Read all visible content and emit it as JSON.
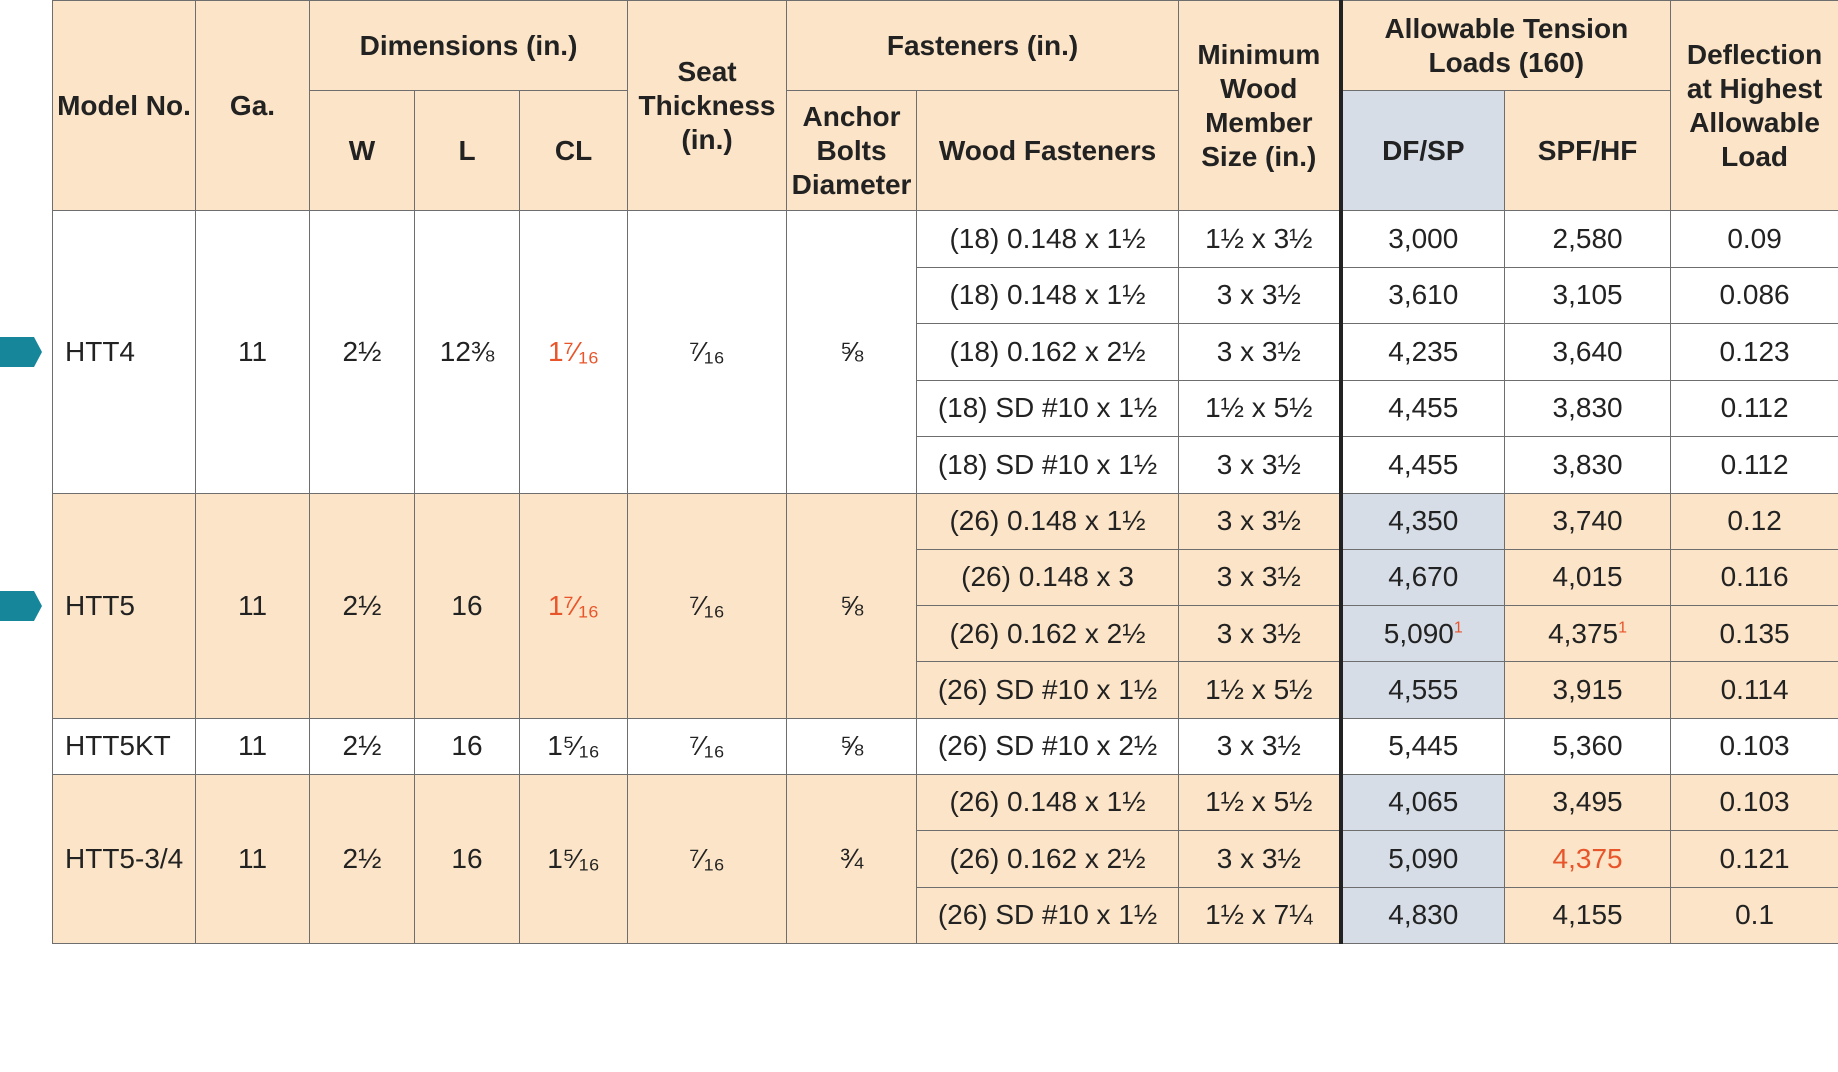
{
  "colors": {
    "header_bg": "#fbe4c7",
    "dfsp_shade": "#d6dde6",
    "accent_red": "#e8552b",
    "marker_teal": "#16879a"
  },
  "header": {
    "model_no": "Model No.",
    "ga": "Ga.",
    "dimensions": "Dimensions (in.)",
    "w": "W",
    "l": "L",
    "cl": "CL",
    "seat_thickness": "Seat Thickness (in.)",
    "fasteners": "Fasteners (in.)",
    "anchor_bolts": "Anchor Bolts Diameter",
    "wood_fasteners": "Wood Fasteners",
    "min_wood_member": "Minimum Wood Member Size (in.)",
    "allowable_tension": "Allowable Tension Loads (160)",
    "dfsp": "DF/SP",
    "spfhf": "SPF/HF",
    "deflection": "Deflection at Highest Allowable Load"
  },
  "groups": [
    {
      "model": "HTT4",
      "ga": "11",
      "w": "2½",
      "l": "12⅜",
      "cl": "1⁷⁄₁₆",
      "cl_red": true,
      "seat": "⁷⁄₁₆",
      "anchor": "⅝",
      "style": "white",
      "marker": true,
      "rows": [
        {
          "wood": "(18) 0.148 x 1½",
          "member": "1½ x 3½",
          "dfsp": "3,000",
          "spfhf": "2,580",
          "defl": "0.09"
        },
        {
          "wood": "(18) 0.148 x 1½",
          "member": "3 x 3½",
          "dfsp": "3,610",
          "spfhf": "3,105",
          "defl": "0.086"
        },
        {
          "wood": "(18) 0.162 x 2½",
          "member": "3 x 3½",
          "dfsp": "4,235",
          "spfhf": "3,640",
          "defl": "0.123"
        },
        {
          "wood": "(18) SD #10 x 1½",
          "member": "1½ x 5½",
          "dfsp": "4,455",
          "spfhf": "3,830",
          "defl": "0.112"
        },
        {
          "wood": "(18) SD #10 x 1½",
          "member": "3 x 3½",
          "dfsp": "4,455",
          "spfhf": "3,830",
          "defl": "0.112"
        }
      ]
    },
    {
      "model": "HTT5",
      "ga": "11",
      "w": "2½",
      "l": "16",
      "cl": "1⁷⁄₁₆",
      "cl_red": true,
      "seat": "⁷⁄₁₆",
      "anchor": "⅝",
      "style": "tan",
      "marker": true,
      "rows": [
        {
          "wood": "(26) 0.148 x 1½",
          "member": "3 x 3½",
          "dfsp": "4,350",
          "spfhf": "3,740",
          "defl": "0.12"
        },
        {
          "wood": "(26) 0.148 x 3",
          "member": "3 x 3½",
          "dfsp": "4,670",
          "spfhf": "4,015",
          "defl": "0.116"
        },
        {
          "wood": "(26) 0.162 x 2½",
          "member": "3 x 3½",
          "dfsp": "5,090",
          "dfsp_sup": "1",
          "spfhf": "4,375",
          "spfhf_sup": "1",
          "defl": "0.135"
        },
        {
          "wood": "(26) SD #10 x 1½",
          "member": "1½ x 5½",
          "dfsp": "4,555",
          "spfhf": "3,915",
          "defl": "0.114"
        }
      ]
    },
    {
      "model": "HTT5KT",
      "ga": "11",
      "w": "2½",
      "l": "16",
      "cl": "1⁵⁄₁₆",
      "cl_red": false,
      "seat": "⁷⁄₁₆",
      "anchor": "⅝",
      "style": "white",
      "marker": false,
      "rows": [
        {
          "wood": "(26) SD #10 x 2½",
          "member": "3 x 3½",
          "dfsp": "5,445",
          "spfhf": "5,360",
          "defl": "0.103"
        }
      ]
    },
    {
      "model": "HTT5-3/4",
      "ga": "11",
      "w": "2½",
      "l": "16",
      "cl": "1⁵⁄₁₆",
      "cl_red": false,
      "seat": "⁷⁄₁₆",
      "anchor": "¾",
      "style": "tan",
      "marker": false,
      "rows": [
        {
          "wood": "(26) 0.148 x 1½",
          "member": "1½ x 5½",
          "dfsp": "4,065",
          "spfhf": "3,495",
          "defl": "0.103"
        },
        {
          "wood": "(26) 0.162 x 2½",
          "member": "3 x 3½",
          "dfsp": "5,090",
          "spfhf": "4,375",
          "spfhf_red": true,
          "defl": "0.121"
        },
        {
          "wood": "(26) SD #10 x 1½",
          "member": "1½ x 7¼",
          "dfsp": "4,830",
          "spfhf": "4,155",
          "defl": "0.1"
        }
      ]
    }
  ]
}
